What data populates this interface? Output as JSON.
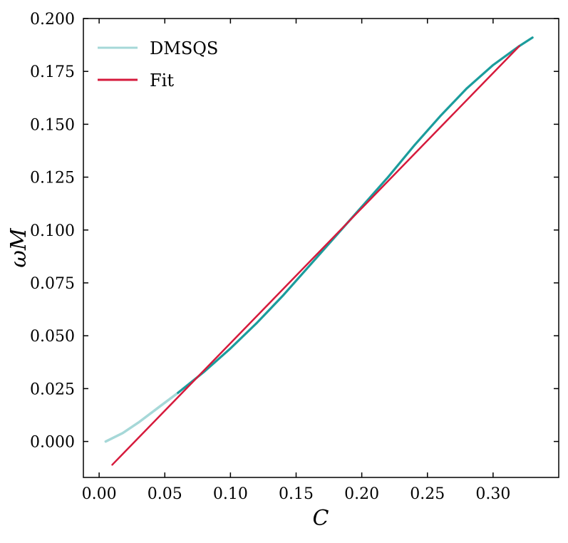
{
  "chart_data": {
    "type": "line",
    "title": "",
    "xlabel": "C",
    "ylabel": "ωM",
    "xlim": [
      -0.012,
      0.35
    ],
    "ylim": [
      -0.017,
      0.2
    ],
    "x_ticks": [
      0.0,
      0.05,
      0.1,
      0.15,
      0.2,
      0.25,
      0.3
    ],
    "x_tick_labels": [
      "0.00",
      "0.05",
      "0.10",
      "0.15",
      "0.20",
      "0.25",
      "0.30"
    ],
    "y_ticks": [
      0.0,
      0.025,
      0.05,
      0.075,
      0.1,
      0.125,
      0.15,
      0.175,
      0.2
    ],
    "y_tick_labels": [
      "0.000",
      "0.025",
      "0.050",
      "0.075",
      "0.100",
      "0.125",
      "0.150",
      "0.175",
      "0.200"
    ],
    "grid": false,
    "legend_position": "top-left",
    "series": [
      {
        "name": "DMSQS",
        "color": "#a6d8d8",
        "x": [
          0.005,
          0.018,
          0.03,
          0.045,
          0.06,
          0.08,
          0.1,
          0.12,
          0.14,
          0.16,
          0.18,
          0.2,
          0.22,
          0.24,
          0.26,
          0.28,
          0.3,
          0.32,
          0.33
        ],
        "y": [
          0.0,
          0.004,
          0.009,
          0.016,
          0.023,
          0.033,
          0.044,
          0.056,
          0.069,
          0.083,
          0.097,
          0.111,
          0.125,
          0.14,
          0.154,
          0.167,
          0.178,
          0.187,
          0.191
        ]
      },
      {
        "name": "Fit",
        "color": "#d61a3c",
        "x": [
          0.01,
          0.32
        ],
        "y": [
          -0.011,
          0.187
        ]
      }
    ]
  }
}
